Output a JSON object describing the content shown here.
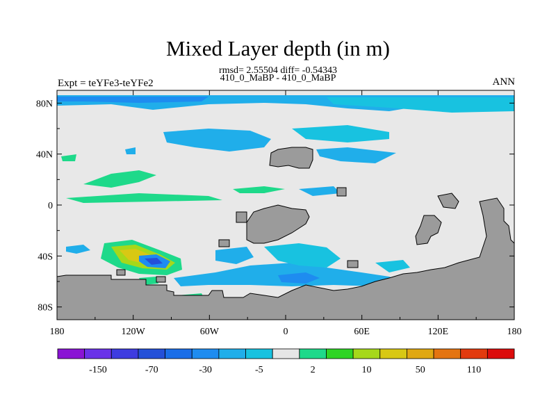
{
  "chart_data": {
    "type": "heatmap",
    "title": "Mixed Layer depth (in m)",
    "subtitle": "rmsd= 2.55504 diff= -0.54343",
    "case_label": "410_0_MaBP - 410_0_MaBP",
    "left_label": "Expt = teYFe3-teYFe2",
    "right_label": "ANN",
    "x_ticks": [
      "180",
      "120W",
      "60W",
      "0",
      "60E",
      "120E",
      "180"
    ],
    "x_tick_values": [
      -180,
      -120,
      -60,
      0,
      60,
      120,
      180
    ],
    "y_ticks": [
      "80N",
      "40N",
      "0",
      "40S",
      "80S"
    ],
    "y_tick_values": [
      80,
      40,
      0,
      -40,
      -80
    ],
    "xlim": [
      -180,
      180
    ],
    "ylim": [
      -90,
      90
    ],
    "land_color": "#9b9b9b",
    "background_color": "#e8e8e8",
    "colorbar": {
      "colors": [
        "#8a14d4",
        "#6a32e8",
        "#3e3ce0",
        "#2450d8",
        "#1a6ee8",
        "#1e8cf0",
        "#20aeea",
        "#18c2e0",
        "#e6e6e6",
        "#1ed98a",
        "#2ed424",
        "#a6d81a",
        "#d8c814",
        "#e0a812",
        "#e47410",
        "#e23a0e",
        "#dc0c0c"
      ],
      "labels": [
        "-150",
        "-70",
        "-30",
        "-5",
        "2",
        "10",
        "50",
        "110"
      ]
    }
  }
}
